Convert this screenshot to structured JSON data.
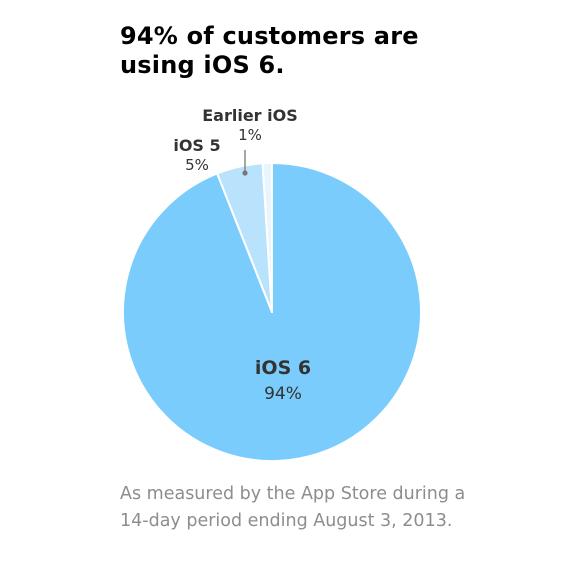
{
  "headline": [
    "94% of customers are",
    "using iOS 6."
  ],
  "caption": [
    "As measured by the App Store during a",
    "14-day period ending August 3, 2013."
  ],
  "chart_data": {
    "type": "pie",
    "slices": [
      {
        "name": "iOS 6",
        "value": 94,
        "label": "94%",
        "color": "#7accfc"
      },
      {
        "name": "iOS 5",
        "value": 5,
        "label": "5%",
        "color": "#b9e3fd"
      },
      {
        "name": "Earlier iOS",
        "value": 1,
        "label": "1%",
        "color": "#e6f5fe"
      }
    ],
    "start_angle_deg": 0,
    "direction": "clockwise",
    "gap_color": "#ffffff"
  }
}
